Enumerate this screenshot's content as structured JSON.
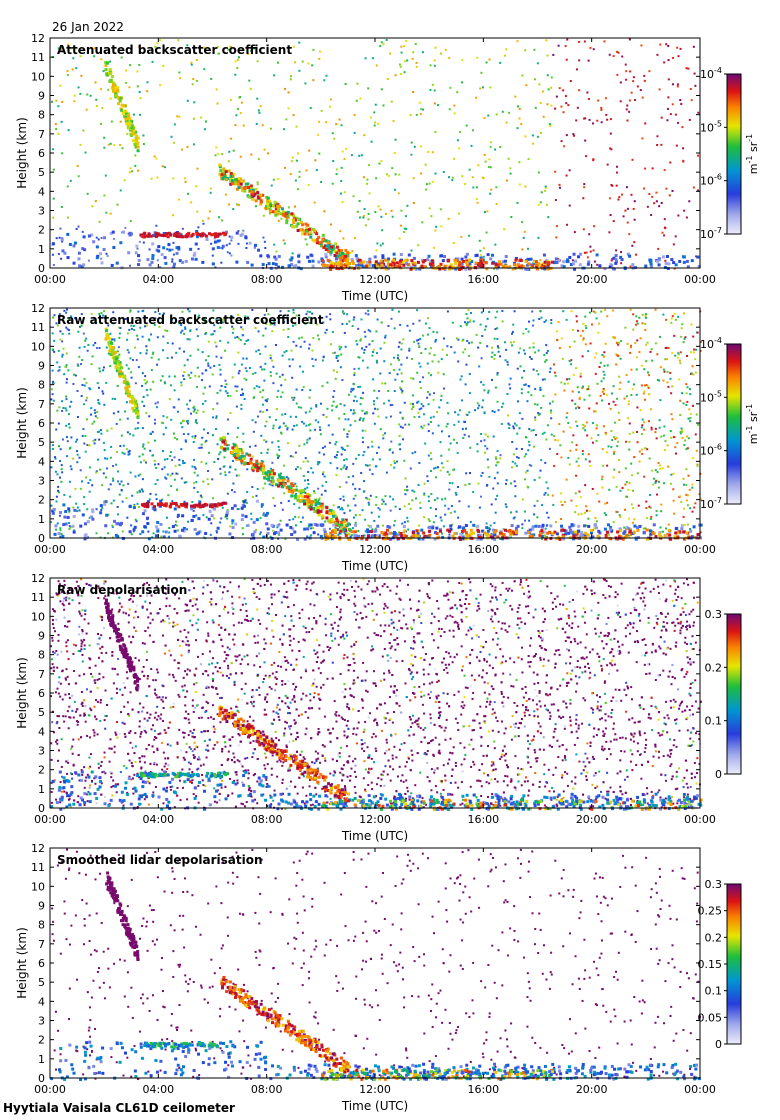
{
  "date": "26 Jan 2022",
  "footer": "Hyytiala Vaisala CL61D ceilometer",
  "chart_data": [
    {
      "type": "heatmap",
      "title": "Attenuated backscatter coefficient",
      "xlabel": "Time (UTC)",
      "ylabel": "Height (km)",
      "x_ticks": [
        "00:00",
        "04:00",
        "08:00",
        "12:00",
        "16:00",
        "20:00",
        "00:00"
      ],
      "y_ticks": [
        "0",
        "1",
        "2",
        "3",
        "4",
        "5",
        "6",
        "7",
        "8",
        "9",
        "10",
        "11",
        "12"
      ],
      "ylim": [
        0,
        12
      ],
      "xlim_hours": [
        0,
        24
      ],
      "colorbar": {
        "scale": "log",
        "ticks": [
          "10",
          "10",
          "10",
          "10"
        ],
        "tick_exponents": [
          "-7",
          "-6",
          "-5",
          "-4"
        ],
        "unit": "m",
        "unit_exp1": "-1",
        "unit_mid": " sr",
        "unit_exp2": "-1",
        "range": [
          1e-07,
          0.0001
        ]
      }
    },
    {
      "type": "heatmap",
      "title": "Raw attenuated backscatter coefficient",
      "xlabel": "Time (UTC)",
      "ylabel": "Height (km)",
      "x_ticks": [
        "00:00",
        "04:00",
        "08:00",
        "12:00",
        "16:00",
        "20:00",
        "00:00"
      ],
      "y_ticks": [
        "0",
        "1",
        "2",
        "3",
        "4",
        "5",
        "6",
        "7",
        "8",
        "9",
        "10",
        "11",
        "12"
      ],
      "ylim": [
        0,
        12
      ],
      "xlim_hours": [
        0,
        24
      ],
      "colorbar": {
        "scale": "log",
        "ticks": [
          "10",
          "10",
          "10",
          "10"
        ],
        "tick_exponents": [
          "-7",
          "-6",
          "-5",
          "-4"
        ],
        "unit": "m",
        "unit_exp1": "-1",
        "unit_mid": " sr",
        "unit_exp2": "-1",
        "range": [
          1e-07,
          0.0001
        ]
      }
    },
    {
      "type": "heatmap",
      "title": "Raw depolarisation",
      "xlabel": "Time (UTC)",
      "ylabel": "Height (km)",
      "x_ticks": [
        "00:00",
        "04:00",
        "08:00",
        "12:00",
        "16:00",
        "20:00",
        "00:00"
      ],
      "y_ticks": [
        "0",
        "1",
        "2",
        "3",
        "4",
        "5",
        "6",
        "7",
        "8",
        "9",
        "10",
        "11",
        "12"
      ],
      "ylim": [
        0,
        12
      ],
      "xlim_hours": [
        0,
        24
      ],
      "colorbar": {
        "scale": "linear",
        "ticks": [
          "0",
          "0.1",
          "0.2",
          "0.3"
        ],
        "range": [
          0,
          0.3
        ]
      }
    },
    {
      "type": "heatmap",
      "title": "Smoothed lidar depolarisation",
      "xlabel": "Time (UTC)",
      "ylabel": "Height (km)",
      "x_ticks": [
        "00:00",
        "04:00",
        "08:00",
        "12:00",
        "16:00",
        "20:00",
        "00:00"
      ],
      "y_ticks": [
        "0",
        "1",
        "2",
        "3",
        "4",
        "5",
        "6",
        "7",
        "8",
        "9",
        "10",
        "11",
        "12"
      ],
      "ylim": [
        0,
        12
      ],
      "xlim_hours": [
        0,
        24
      ],
      "colorbar": {
        "scale": "linear",
        "ticks": [
          "0",
          "0.05",
          "0.1",
          "0.15",
          "0.2",
          "0.25",
          "0.3"
        ],
        "range": [
          0,
          0.3
        ]
      }
    }
  ]
}
